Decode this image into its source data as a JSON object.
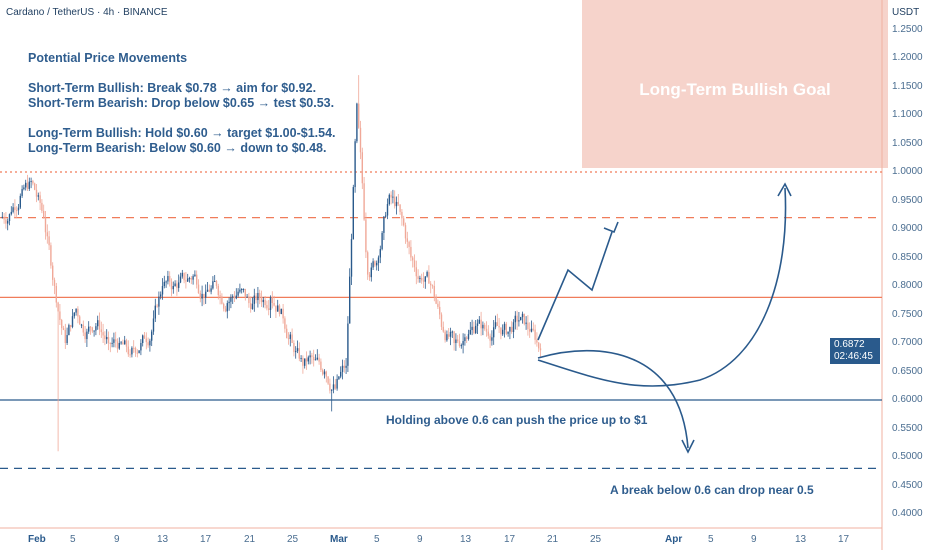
{
  "header": {
    "title": "Cardano / TetherUS · 4h · BINANCE",
    "currency": "USDT"
  },
  "notes": {
    "heading": "Potential Price Movements",
    "lines": [
      "Short-Term Bullish: Break $0.78 → aim for $0.92.",
      "Short-Term Bearish: Drop below $0.65 → test $0.53.",
      "",
      "Long-Term Bullish: Hold $0.60 → target $1.00-$1.54.",
      "Long-Term Bearish: Below $0.60 → down to $0.48."
    ]
  },
  "goal_box": {
    "label": "Long-Term Bullish Goal",
    "color": "#f6d3cb"
  },
  "annotations": {
    "hold": "Holding above 0.6 can push the price up to $1",
    "break": "A break below 0.6 can drop near 0.5"
  },
  "last_price": {
    "value": "0.6872",
    "countdown": "02:46:45"
  },
  "colors": {
    "up": "#2a5a8c",
    "down": "#f0a898",
    "orange": "#f07c5a",
    "blue": "#2a5a8c"
  },
  "chart_data": {
    "type": "candlestick",
    "ylim": [
      0.38,
      1.27
    ],
    "y_ticks": [
      "1.2500",
      "1.2000",
      "1.1500",
      "1.1000",
      "1.0500",
      "1.0000",
      "0.9500",
      "0.9000",
      "0.8500",
      "0.8000",
      "0.7500",
      "0.7000",
      "0.6500",
      "0.6000",
      "0.5500",
      "0.5000",
      "0.4500",
      "0.4000"
    ],
    "x_ticks": [
      "Feb",
      "5",
      "9",
      "13",
      "17",
      "21",
      "25",
      "Mar",
      "5",
      "9",
      "13",
      "17",
      "21",
      "25",
      "Apr",
      "5",
      "9",
      "13",
      "17"
    ],
    "daily_closes": [
      [
        "Jan 29",
        0.93
      ],
      [
        "Jan 30",
        0.97
      ],
      [
        "Jan 31",
        0.98
      ],
      [
        "Feb 1",
        0.92
      ],
      [
        "Feb 2",
        0.8
      ],
      [
        "Feb 3",
        0.7
      ],
      [
        "Feb 4",
        0.76
      ],
      [
        "Feb 5",
        0.72
      ],
      [
        "Feb 6",
        0.74
      ],
      [
        "Feb 7",
        0.7
      ],
      [
        "Feb 8",
        0.7
      ],
      [
        "Feb 9",
        0.68
      ],
      [
        "Feb 10",
        0.7
      ],
      [
        "Feb 11",
        0.72
      ],
      [
        "Feb 12",
        0.8
      ],
      [
        "Feb 13",
        0.8
      ],
      [
        "Feb 14",
        0.81
      ],
      [
        "Feb 15",
        0.82
      ],
      [
        "Feb 16",
        0.79
      ],
      [
        "Feb 17",
        0.8
      ],
      [
        "Feb 18",
        0.77
      ],
      [
        "Feb 19",
        0.79
      ],
      [
        "Feb 20",
        0.77
      ],
      [
        "Feb 21",
        0.78
      ],
      [
        "Feb 22",
        0.78
      ],
      [
        "Feb 23",
        0.76
      ],
      [
        "Feb 24",
        0.7
      ],
      [
        "Feb 25",
        0.66
      ],
      [
        "Feb 26",
        0.67
      ],
      [
        "Feb 27",
        0.65
      ],
      [
        "Feb 28",
        0.62
      ],
      [
        "Mar 1",
        0.66
      ],
      [
        "Mar 2",
        1.12
      ],
      [
        "Mar 3",
        0.82
      ],
      [
        "Mar 4",
        0.85
      ],
      [
        "Mar 5",
        0.96
      ],
      [
        "Mar 6",
        0.93
      ],
      [
        "Mar 7",
        0.85
      ],
      [
        "Mar 8",
        0.81
      ],
      [
        "Mar 9",
        0.8
      ],
      [
        "Mar 10",
        0.72
      ],
      [
        "Mar 11",
        0.7
      ],
      [
        "Mar 12",
        0.71
      ],
      [
        "Mar 13",
        0.73
      ],
      [
        "Mar 14",
        0.72
      ],
      [
        "Mar 15",
        0.73
      ],
      [
        "Mar 16",
        0.72
      ],
      [
        "Mar 17",
        0.74
      ],
      [
        "Mar 18",
        0.72
      ],
      [
        "Mar 19",
        0.6872
      ]
    ],
    "levels": [
      {
        "price": 1.0,
        "style": "dotted",
        "color": "#f07c5a"
      },
      {
        "price": 0.92,
        "style": "dashed",
        "color": "#f07c5a"
      },
      {
        "price": 0.78,
        "style": "solid",
        "color": "#f07c5a"
      },
      {
        "price": 0.6,
        "style": "solid",
        "color": "#2a5a8c"
      },
      {
        "price": 0.48,
        "style": "dashed",
        "color": "#2a5a8c"
      }
    ]
  }
}
